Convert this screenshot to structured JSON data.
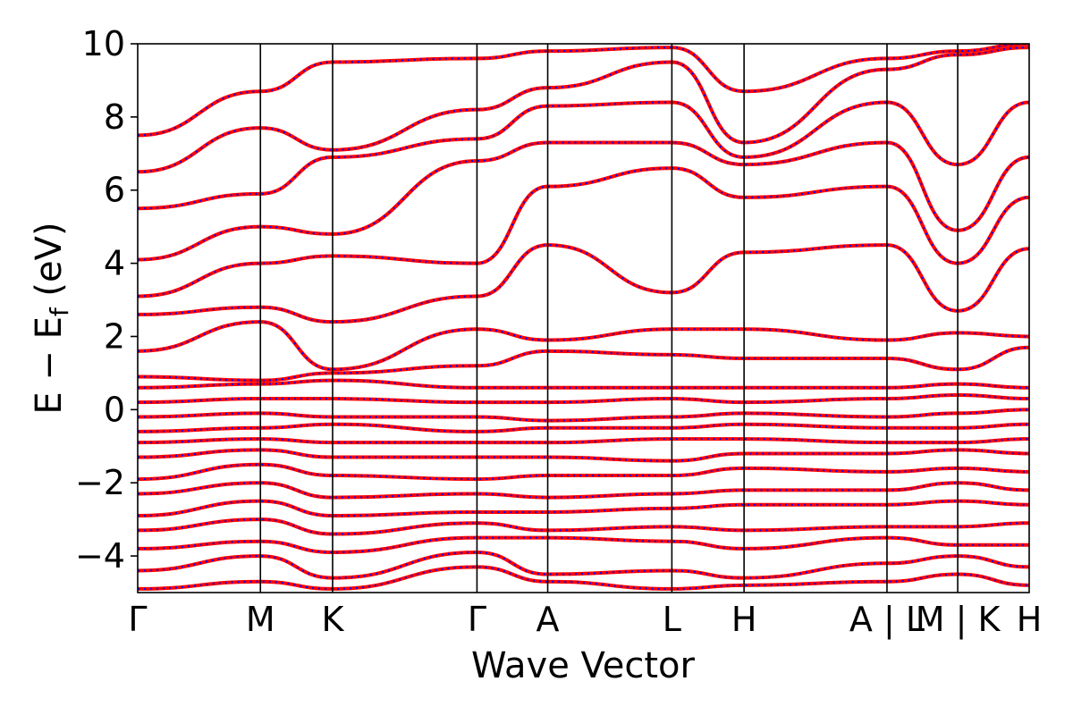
{
  "chart_data": {
    "type": "line",
    "title": "",
    "xlabel": "Wave Vector",
    "ylabel": {
      "main": "E − E",
      "subscript": "f",
      "unit": " (eV)"
    },
    "ylim": [
      -5,
      10
    ],
    "yticks": [
      -4,
      -2,
      0,
      2,
      4,
      6,
      8,
      10
    ],
    "ytick_labels": [
      "−4",
      "−2",
      "0",
      "2",
      "4",
      "6",
      "8",
      "10"
    ],
    "xlim": [
      0,
      12.35
    ],
    "kpoints": [
      {
        "label": "Γ",
        "x": 0.0
      },
      {
        "label": "M",
        "x": 1.7
      },
      {
        "label": "K",
        "x": 2.7
      },
      {
        "label": "Γ",
        "x": 4.7
      },
      {
        "label": "A",
        "x": 5.68
      },
      {
        "label": "L",
        "x": 7.4
      },
      {
        "label": "H",
        "x": 8.4
      },
      {
        "label": "A | L",
        "x": 10.38
      },
      {
        "label": "M | K",
        "x": 11.36
      },
      {
        "label": "H",
        "x": 12.35
      }
    ],
    "series": [
      {
        "style": "solid",
        "color": "#ff0000",
        "x": [
          0,
          1.7,
          2.7,
          4.7,
          5.68,
          7.4,
          8.4,
          10.38,
          11.36,
          12.35
        ],
        "bands": [
          [
            -4.9,
            -4.7,
            -4.9,
            -4.3,
            -4.7,
            -4.9,
            -4.8,
            -4.7,
            -4.5,
            -4.8
          ],
          [
            -4.4,
            -4.0,
            -4.6,
            -3.9,
            -4.5,
            -4.4,
            -4.6,
            -4.2,
            -4.0,
            -4.3
          ],
          [
            -3.8,
            -3.6,
            -3.9,
            -3.5,
            -3.5,
            -3.6,
            -3.8,
            -3.5,
            -3.7,
            -3.7
          ],
          [
            -3.3,
            -3.0,
            -3.4,
            -3.1,
            -3.3,
            -3.2,
            -3.3,
            -3.2,
            -3.2,
            -3.1
          ],
          [
            -2.9,
            -2.5,
            -2.9,
            -2.8,
            -2.8,
            -2.7,
            -2.6,
            -2.6,
            -2.5,
            -2.6
          ],
          [
            -2.3,
            -2.0,
            -2.4,
            -2.3,
            -2.4,
            -2.3,
            -2.2,
            -2.2,
            -2.0,
            -2.2
          ],
          [
            -1.9,
            -1.5,
            -1.8,
            -1.9,
            -1.8,
            -1.8,
            -1.6,
            -1.7,
            -1.6,
            -1.7
          ],
          [
            -1.3,
            -1.1,
            -1.3,
            -1.3,
            -1.3,
            -1.4,
            -1.2,
            -1.2,
            -1.1,
            -1.2
          ],
          [
            -0.9,
            -0.8,
            -0.9,
            -0.9,
            -0.9,
            -0.8,
            -0.8,
            -0.9,
            -0.9,
            -0.8
          ],
          [
            -0.6,
            -0.5,
            -0.4,
            -0.6,
            -0.5,
            -0.5,
            -0.4,
            -0.5,
            -0.5,
            -0.4
          ],
          [
            -0.2,
            -0.1,
            -0.2,
            -0.2,
            -0.3,
            -0.2,
            -0.1,
            -0.2,
            -0.1,
            0.0
          ],
          [
            0.2,
            0.3,
            0.3,
            0.2,
            0.2,
            0.3,
            0.2,
            0.3,
            0.4,
            0.3
          ],
          [
            0.6,
            0.7,
            0.8,
            0.6,
            0.6,
            0.6,
            0.6,
            0.6,
            0.7,
            0.6
          ],
          [
            0.9,
            0.8,
            1.0,
            1.2,
            1.6,
            1.5,
            1.4,
            1.4,
            1.1,
            1.7
          ],
          [
            1.6,
            2.4,
            1.1,
            2.2,
            1.9,
            2.2,
            2.2,
            1.9,
            2.1,
            2.0
          ],
          [
            2.6,
            2.8,
            2.4,
            3.1,
            4.5,
            3.2,
            4.3,
            4.5,
            2.7,
            4.4
          ],
          [
            3.1,
            4.0,
            4.2,
            4.0,
            6.1,
            6.6,
            5.8,
            6.1,
            4.0,
            5.8
          ],
          [
            4.1,
            5.0,
            4.8,
            6.8,
            7.3,
            7.3,
            6.7,
            7.3,
            4.9,
            6.9
          ],
          [
            5.5,
            5.9,
            6.9,
            7.4,
            8.3,
            8.4,
            6.9,
            8.4,
            6.7,
            8.4
          ],
          [
            6.5,
            7.7,
            7.1,
            8.2,
            8.8,
            9.5,
            7.3,
            9.3,
            9.7,
            9.9
          ],
          [
            7.5,
            8.7,
            9.5,
            9.6,
            9.8,
            9.9,
            8.7,
            9.6,
            9.8,
            10.0
          ]
        ]
      },
      {
        "style": "dotted",
        "color": "#0000ff"
      }
    ]
  }
}
